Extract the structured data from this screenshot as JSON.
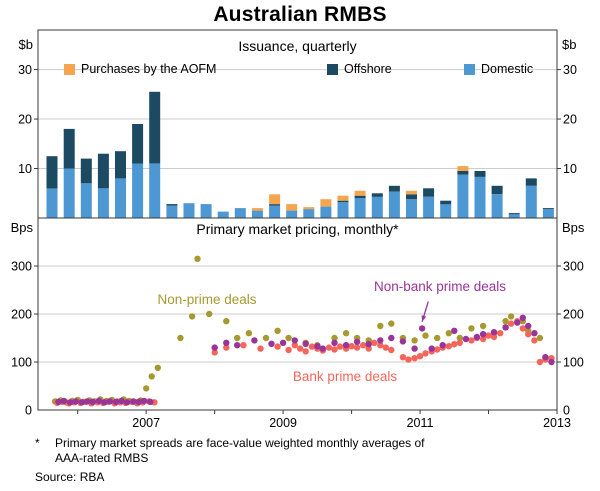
{
  "title": "Australian RMBS",
  "panels": {
    "top": {
      "subtitle": "Issuance, quarterly",
      "unit_left": "$b",
      "unit_right": "$b"
    },
    "bottom": {
      "subtitle": "Primary market pricing, monthly*",
      "unit_left": "Bps",
      "unit_right": "Bps"
    }
  },
  "legend": [
    {
      "label": "Purchases by the AOFM",
      "color": "#F5A54E"
    },
    {
      "label": "Offshore",
      "color": "#1C4A63"
    },
    {
      "label": "Domestic",
      "color": "#4D97D2"
    }
  ],
  "footnote": {
    "marker": "*",
    "line1": "Primary market spreads are face-value weighted monthly averages of",
    "line2": "AAA-rated RMBS",
    "source": "Source: RBA"
  },
  "chart_data": [
    {
      "type": "bar",
      "stacked": true,
      "title": "Issuance, quarterly",
      "xlabel": "",
      "ylabel": "$b",
      "ylim": [
        0,
        38
      ],
      "yticks": [
        10,
        20,
        30
      ],
      "xlim": [
        2005.42,
        2013.0
      ],
      "xticks": [
        2007,
        2009,
        2011,
        2013
      ],
      "x": [
        2005.625,
        2005.875,
        2006.125,
        2006.375,
        2006.625,
        2006.875,
        2007.125,
        2007.375,
        2007.625,
        2007.875,
        2008.125,
        2008.375,
        2008.625,
        2008.875,
        2009.125,
        2009.375,
        2009.625,
        2009.875,
        2010.125,
        2010.375,
        2010.625,
        2010.875,
        2011.125,
        2011.375,
        2011.625,
        2011.875,
        2012.125,
        2012.375,
        2012.625,
        2012.875
      ],
      "series": [
        {
          "name": "Domestic",
          "color": "#4D97D2",
          "values": [
            6,
            10,
            7,
            6,
            8,
            11,
            11,
            2.5,
            3,
            2.8,
            1.3,
            2,
            1.5,
            2.5,
            1.5,
            1.8,
            2.3,
            3.2,
            4,
            4.3,
            5.3,
            3.8,
            4.3,
            2.8,
            8.8,
            8.3,
            4.8,
            0.8,
            6.5,
            1.8
          ]
        },
        {
          "name": "Offshore",
          "color": "#1C4A63",
          "values": [
            6.5,
            8,
            5,
            7,
            5.5,
            8,
            14.5,
            0.3,
            0,
            0,
            0,
            0,
            0,
            0.3,
            0,
            0,
            0,
            0.3,
            0.5,
            0.7,
            1.2,
            1,
            1.7,
            0.7,
            0.7,
            1.2,
            1.7,
            0.2,
            1.5,
            0.2
          ]
        },
        {
          "name": "Purchases by the AOFM",
          "color": "#F5A54E",
          "values": [
            0,
            0,
            0,
            0,
            0,
            0,
            0,
            0,
            0,
            0,
            0,
            0,
            0.5,
            2,
            1.3,
            0.4,
            1.5,
            1,
            1,
            0,
            0,
            0.7,
            0,
            0,
            1,
            0,
            0,
            0,
            0,
            0
          ]
        }
      ]
    },
    {
      "type": "scatter",
      "title": "Primary market pricing, monthly",
      "xlabel": "",
      "ylabel": "Bps",
      "ylim": [
        0,
        400
      ],
      "yticks": [
        0,
        100,
        200,
        300
      ],
      "xlim": [
        2005.42,
        2013.0
      ],
      "xticks": [
        2007,
        2009,
        2011,
        2013
      ],
      "series": [
        {
          "name": "Non-prime deals",
          "color": "#A6992F",
          "points": [
            [
              2005.67,
              18
            ],
            [
              2005.75,
              20
            ],
            [
              2005.83,
              16
            ],
            [
              2005.92,
              19
            ],
            [
              2006.0,
              21
            ],
            [
              2006.08,
              17
            ],
            [
              2006.17,
              20
            ],
            [
              2006.25,
              18
            ],
            [
              2006.33,
              22
            ],
            [
              2006.42,
              19
            ],
            [
              2006.5,
              21
            ],
            [
              2006.58,
              18
            ],
            [
              2006.67,
              22
            ],
            [
              2006.75,
              19
            ],
            [
              2006.83,
              17
            ],
            [
              2006.92,
              20
            ],
            [
              2007.0,
              45
            ],
            [
              2007.08,
              70
            ],
            [
              2007.17,
              88
            ],
            [
              2007.5,
              150
            ],
            [
              2007.67,
              195
            ],
            [
              2007.75,
              315
            ],
            [
              2007.92,
              200
            ],
            [
              2008.17,
              185
            ],
            [
              2008.33,
              150
            ],
            [
              2008.5,
              160
            ],
            [
              2008.75,
              150
            ],
            [
              2008.92,
              165
            ],
            [
              2009.08,
              150
            ],
            [
              2009.33,
              140
            ],
            [
              2009.5,
              135
            ],
            [
              2009.75,
              150
            ],
            [
              2009.92,
              160
            ],
            [
              2010.08,
              150
            ],
            [
              2010.25,
              145
            ],
            [
              2010.42,
              175
            ],
            [
              2010.58,
              180
            ],
            [
              2010.75,
              150
            ],
            [
              2010.92,
              145
            ],
            [
              2011.08,
              155
            ],
            [
              2011.25,
              150
            ],
            [
              2011.42,
              160
            ],
            [
              2011.58,
              150
            ],
            [
              2011.75,
              170
            ],
            [
              2011.92,
              175
            ],
            [
              2012.08,
              160
            ],
            [
              2012.25,
              185
            ],
            [
              2012.33,
              195
            ],
            [
              2012.5,
              185
            ],
            [
              2012.58,
              165
            ],
            [
              2012.75,
              150
            ]
          ]
        },
        {
          "name": "Bank prime deals",
          "color": "#F4665C",
          "points": [
            [
              2005.7,
              15
            ],
            [
              2005.78,
              17
            ],
            [
              2005.87,
              14
            ],
            [
              2005.95,
              16
            ],
            [
              2006.04,
              15
            ],
            [
              2006.12,
              17
            ],
            [
              2006.2,
              14
            ],
            [
              2006.29,
              16
            ],
            [
              2006.37,
              15
            ],
            [
              2006.45,
              17
            ],
            [
              2006.54,
              14
            ],
            [
              2006.62,
              16
            ],
            [
              2006.7,
              15
            ],
            [
              2006.79,
              17
            ],
            [
              2006.87,
              14
            ],
            [
              2006.95,
              16
            ],
            [
              2007.04,
              18
            ],
            [
              2007.12,
              16
            ],
            [
              2008.0,
              120
            ],
            [
              2008.17,
              130
            ],
            [
              2008.42,
              135
            ],
            [
              2008.67,
              128
            ],
            [
              2008.92,
              132
            ],
            [
              2009.08,
              125
            ],
            [
              2009.17,
              135
            ],
            [
              2009.25,
              128
            ],
            [
              2009.33,
              122
            ],
            [
              2009.42,
              132
            ],
            [
              2009.5,
              128
            ],
            [
              2009.58,
              124
            ],
            [
              2009.67,
              130
            ],
            [
              2009.75,
              126
            ],
            [
              2009.83,
              132
            ],
            [
              2009.92,
              128
            ],
            [
              2010.0,
              133
            ],
            [
              2010.08,
              130
            ],
            [
              2010.17,
              135
            ],
            [
              2010.25,
              128
            ],
            [
              2010.33,
              140
            ],
            [
              2010.42,
              135
            ],
            [
              2010.5,
              130
            ],
            [
              2010.58,
              125
            ],
            [
              2010.75,
              110
            ],
            [
              2010.83,
              105
            ],
            [
              2010.92,
              108
            ],
            [
              2011.0,
              112
            ],
            [
              2011.08,
              118
            ],
            [
              2011.17,
              122
            ],
            [
              2011.25,
              126
            ],
            [
              2011.33,
              130
            ],
            [
              2011.42,
              133
            ],
            [
              2011.5,
              137
            ],
            [
              2011.58,
              140
            ],
            [
              2011.75,
              145
            ],
            [
              2011.83,
              150
            ],
            [
              2011.92,
              148
            ],
            [
              2012.0,
              155
            ],
            [
              2012.08,
              152
            ],
            [
              2012.17,
              160
            ],
            [
              2012.25,
              172
            ],
            [
              2012.33,
              180
            ],
            [
              2012.42,
              185
            ],
            [
              2012.5,
              170
            ],
            [
              2012.58,
              158
            ],
            [
              2012.67,
              145
            ],
            [
              2012.75,
              100
            ],
            [
              2012.83,
              105
            ],
            [
              2012.92,
              108
            ]
          ]
        },
        {
          "name": "Non-bank prime deals",
          "color": "#993499",
          "points": [
            [
              2005.72,
              17
            ],
            [
              2005.8,
              19
            ],
            [
              2005.89,
              16
            ],
            [
              2005.97,
              18
            ],
            [
              2006.06,
              16
            ],
            [
              2006.14,
              18
            ],
            [
              2006.22,
              17
            ],
            [
              2006.31,
              19
            ],
            [
              2006.39,
              16
            ],
            [
              2006.47,
              18
            ],
            [
              2006.56,
              17
            ],
            [
              2006.64,
              19
            ],
            [
              2006.72,
              16
            ],
            [
              2006.81,
              18
            ],
            [
              2006.89,
              17
            ],
            [
              2006.97,
              19
            ],
            [
              2007.06,
              17
            ],
            [
              2008.0,
              130
            ],
            [
              2008.17,
              140
            ],
            [
              2008.33,
              135
            ],
            [
              2008.58,
              145
            ],
            [
              2008.83,
              138
            ],
            [
              2009.0,
              140
            ],
            [
              2009.17,
              145
            ],
            [
              2009.33,
              138
            ],
            [
              2009.5,
              133
            ],
            [
              2009.58,
              128
            ],
            [
              2009.75,
              140
            ],
            [
              2009.92,
              135
            ],
            [
              2010.08,
              142
            ],
            [
              2010.25,
              137
            ],
            [
              2010.42,
              145
            ],
            [
              2010.58,
              150
            ],
            [
              2010.75,
              143
            ],
            [
              2010.92,
              128
            ],
            [
              2011.03,
              170
            ],
            [
              2011.17,
              128
            ],
            [
              2011.33,
              135
            ],
            [
              2011.5,
              165
            ],
            [
              2011.67,
              148
            ],
            [
              2011.83,
              152
            ],
            [
              2011.92,
              158
            ],
            [
              2012.08,
              162
            ],
            [
              2012.25,
              172
            ],
            [
              2012.42,
              182
            ],
            [
              2012.5,
              192
            ],
            [
              2012.58,
              175
            ],
            [
              2012.67,
              160
            ],
            [
              2012.83,
              110
            ],
            [
              2012.92,
              100
            ]
          ]
        }
      ],
      "annotations": [
        {
          "text": "Non-prime deals",
          "x": 2008.6,
          "y": 235,
          "color": "#A6992F"
        },
        {
          "text": "Non-bank prime deals",
          "x": 2011.35,
          "y": 250,
          "color": "#993499",
          "arrow_from": [
            2011.12,
            226
          ],
          "arrow_to": [
            2011.03,
            184
          ]
        },
        {
          "text": "Bank prime deals",
          "x": 2009.9,
          "y": 65,
          "color": "#F4665C"
        }
      ]
    }
  ]
}
